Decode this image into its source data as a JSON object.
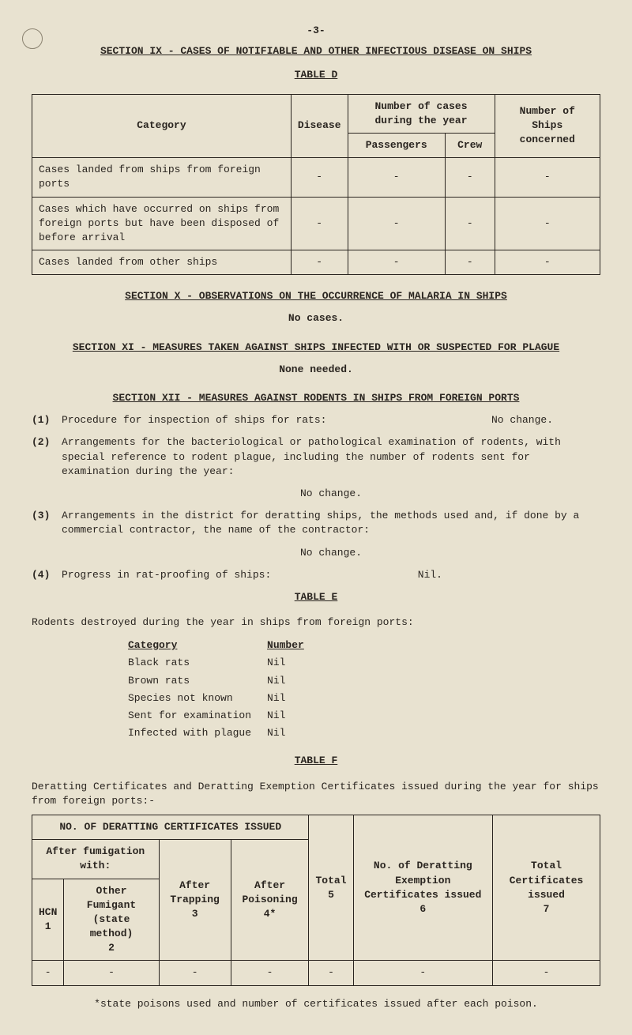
{
  "page_number": "-3-",
  "section_ix_title": "SECTION IX - CASES OF NOTIFIABLE AND OTHER INFECTIOUS DISEASE ON SHIPS",
  "table_d_label": "TABLE D",
  "table_d": {
    "headers": {
      "category": "Category",
      "disease": "Disease",
      "cases_header": "Number of cases during the year",
      "passengers": "Passengers",
      "crew": "Crew",
      "ships": "Number of Ships concerned"
    },
    "rows": [
      {
        "category": "Cases landed from ships from foreign ports",
        "disease": "-",
        "passengers": "-",
        "crew": "-",
        "ships": "-"
      },
      {
        "category": "Cases which have occurred on ships from foreign ports but have been disposed of before arrival",
        "disease": "-",
        "passengers": "-",
        "crew": "-",
        "ships": "-"
      },
      {
        "category": "Cases landed from other ships",
        "disease": "-",
        "passengers": "-",
        "crew": "-",
        "ships": "-"
      }
    ]
  },
  "section_x_title": "SECTION X - OBSERVATIONS ON THE OCCURRENCE OF MALARIA IN SHIPS",
  "section_x_body": "No cases.",
  "section_xi_title": "SECTION XI - MEASURES TAKEN AGAINST SHIPS INFECTED WITH OR SUSPECTED FOR PLAGUE",
  "section_xi_body": "None needed.",
  "section_xii_title": "SECTION XII - MEASURES AGAINST RODENTS IN SHIPS FROM FOREIGN PORTS",
  "items": {
    "i1": {
      "num": "(1)",
      "text": "Procedure for inspection of ships for rats:",
      "answer": "No change."
    },
    "i2": {
      "num": "(2)",
      "text": "Arrangements for the bacteriological or pathological examination of rodents, with special reference to rodent plague, including the number of rodents sent for examination during the year:",
      "answer": "No change."
    },
    "i3": {
      "num": "(3)",
      "text": "Arrangements in the district for deratting ships, the methods used and, if done by a commercial contractor, the name of the contractor:",
      "answer": "No change."
    },
    "i4": {
      "num": "(4)",
      "text": "Progress in rat-proofing of ships:",
      "answer": "Nil."
    }
  },
  "table_e_label": "TABLE E",
  "table_e_intro": "Rodents destroyed during the year in ships from foreign ports:",
  "table_e": {
    "head_cat": "Category",
    "head_num": "Number",
    "rows": [
      {
        "cat": "Black rats",
        "num": "Nil"
      },
      {
        "cat": "Brown rats",
        "num": "Nil"
      },
      {
        "cat": "Species not known",
        "num": "Nil"
      },
      {
        "cat": "Sent for examination",
        "num": "Nil"
      },
      {
        "cat": "Infected with plague",
        "num": "Nil"
      }
    ]
  },
  "table_f_label": "TABLE F",
  "table_f_intro": "Deratting Certificates and Deratting Exemption Certificates issued during the year for ships from foreign ports:-",
  "table_f": {
    "h_no_issued": "NO. OF DERATTING CERTIFICATES ISSUED",
    "h_after_fumig": "After fumigation with:",
    "h_hcn": "HCN",
    "h_other": "Other Fumigant (state method)",
    "h_after_trap": "After Trapping",
    "h_after_poison": "After Poisoning",
    "h_total": "Total",
    "h_exempt": "No. of Deratting Exemption Certificates issued",
    "h_totalcerts": "Total Certificates issued",
    "n1": "1",
    "n2": "2",
    "n3": "3",
    "n4": "4*",
    "n5": "5",
    "n6": "6",
    "n7": "7",
    "row": {
      "c1": "-",
      "c2": "-",
      "c3": "-",
      "c4": "-",
      "c5": "-",
      "c6": "-",
      "c7": "-"
    }
  },
  "footnote": "*state poisons used and number of certificates issued after each poison."
}
